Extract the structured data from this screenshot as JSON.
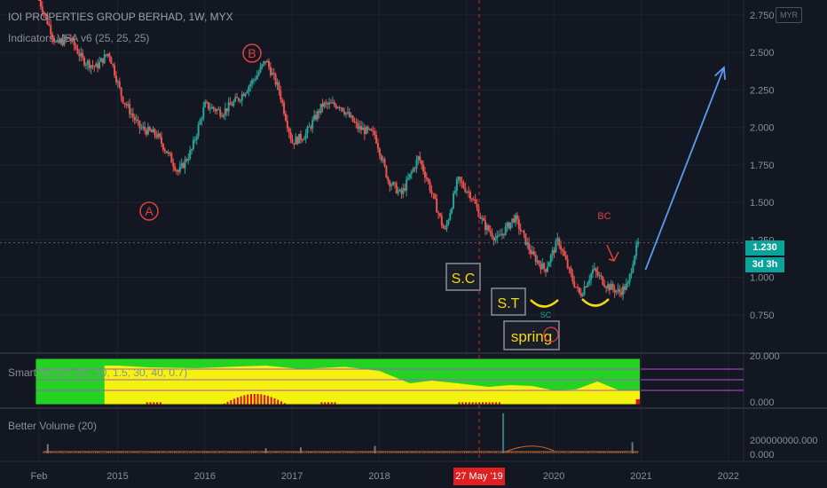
{
  "header": {
    "title": "IOI PROPERTIES GROUP BERHAD, 1W, MYX",
    "indicator": "Indicators VSA v6 (25, 25, 25)",
    "currency_badge": "MYR"
  },
  "panes": {
    "mcdx_label": "Smart MCDX (50, 50, 1.5, 30, 40, 0.7)",
    "volume_label": "Better Volume (20)"
  },
  "price_flags": {
    "last": "1.230",
    "countdown": "3d 3h"
  },
  "crosshair_date": "27 May '19",
  "annotations": {
    "wave_b": "B",
    "wave_a": "A",
    "sc": "S.C",
    "st": "S.T",
    "spring": "spring",
    "sc_small": "SC",
    "bc": "BC"
  },
  "colors": {
    "background": "#131722",
    "up_candle": "#26a69a",
    "down_candle": "#ef5350",
    "annotation_red": "#e0403c",
    "annotation_yellow": "#f5d90a",
    "forecast_arrow": "#5b9cf0",
    "mcdx_green": "#22d322",
    "mcdx_yellow": "#f3f30e",
    "mcdx_red": "#e01010",
    "badge_teal": "#0aa39a"
  },
  "chart_data": [
    {
      "type": "candlestick",
      "title": "IOI PROPERTIES GROUP BERHAD, 1W, MYX",
      "x_ticks": [
        "Feb",
        "2015",
        "2016",
        "2017",
        "2018",
        "2019",
        "2020",
        "2021",
        "2022"
      ],
      "y_ticks": [
        0.75,
        1.0,
        1.25,
        1.5,
        1.75,
        2.0,
        2.25,
        2.5,
        2.75
      ],
      "ylim": [
        0.5,
        2.85
      ],
      "last_price": 1.23,
      "close_path": [
        {
          "x": 2014.1,
          "y": 2.85
        },
        {
          "x": 2014.3,
          "y": 2.55
        },
        {
          "x": 2014.45,
          "y": 2.6
        },
        {
          "x": 2014.6,
          "y": 2.45
        },
        {
          "x": 2014.75,
          "y": 2.4
        },
        {
          "x": 2014.9,
          "y": 2.5
        },
        {
          "x": 2015.05,
          "y": 2.2
        },
        {
          "x": 2015.25,
          "y": 2.0
        },
        {
          "x": 2015.45,
          "y": 1.95
        },
        {
          "x": 2015.6,
          "y": 1.8
        },
        {
          "x": 2015.7,
          "y": 1.7
        },
        {
          "x": 2015.85,
          "y": 1.85
        },
        {
          "x": 2016.0,
          "y": 2.15
        },
        {
          "x": 2016.2,
          "y": 2.1
        },
        {
          "x": 2016.4,
          "y": 2.2
        },
        {
          "x": 2016.6,
          "y": 2.35
        },
        {
          "x": 2016.7,
          "y": 2.45
        },
        {
          "x": 2016.85,
          "y": 2.25
        },
        {
          "x": 2017.0,
          "y": 1.9
        },
        {
          "x": 2017.15,
          "y": 1.95
        },
        {
          "x": 2017.35,
          "y": 2.15
        },
        {
          "x": 2017.55,
          "y": 2.15
        },
        {
          "x": 2017.75,
          "y": 2.0
        },
        {
          "x": 2017.95,
          "y": 1.95
        },
        {
          "x": 2018.1,
          "y": 1.65
        },
        {
          "x": 2018.25,
          "y": 1.55
        },
        {
          "x": 2018.45,
          "y": 1.8
        },
        {
          "x": 2018.55,
          "y": 1.65
        },
        {
          "x": 2018.75,
          "y": 1.3
        },
        {
          "x": 2018.9,
          "y": 1.65
        },
        {
          "x": 2019.05,
          "y": 1.55
        },
        {
          "x": 2019.2,
          "y": 1.35
        },
        {
          "x": 2019.35,
          "y": 1.25
        },
        {
          "x": 2019.55,
          "y": 1.4
        },
        {
          "x": 2019.75,
          "y": 1.15
        },
        {
          "x": 2019.9,
          "y": 1.05
        },
        {
          "x": 2020.05,
          "y": 1.25
        },
        {
          "x": 2020.2,
          "y": 1.0
        },
        {
          "x": 2020.3,
          "y": 0.88
        },
        {
          "x": 2020.45,
          "y": 1.05
        },
        {
          "x": 2020.6,
          "y": 0.95
        },
        {
          "x": 2020.75,
          "y": 0.9
        },
        {
          "x": 2020.85,
          "y": 0.95
        },
        {
          "x": 2020.92,
          "y": 1.15
        },
        {
          "x": 2020.97,
          "y": 1.23
        }
      ],
      "forecast_arrow": {
        "from": {
          "x": 2021.05,
          "y": 1.05
        },
        "to": {
          "x": 2021.95,
          "y": 2.4
        }
      }
    },
    {
      "type": "area",
      "title": "Smart MCDX (50, 50, 1.5, 30, 40, 0.7)",
      "y_ticks": [
        0.0,
        20.0
      ],
      "y_tick_labels": [
        "0.000",
        "20.000"
      ],
      "ylim": [
        0,
        20
      ],
      "x_range": [
        2014.1,
        2020.97
      ],
      "green_level": [
        {
          "x": 2014.1,
          "y": 20
        },
        {
          "x": 2015.0,
          "y": 20
        },
        {
          "x": 2015.35,
          "y": 19
        },
        {
          "x": 2015.9,
          "y": 18.5
        },
        {
          "x": 2016.4,
          "y": 19.5
        },
        {
          "x": 2016.7,
          "y": 20
        },
        {
          "x": 2017.1,
          "y": 18
        },
        {
          "x": 2017.6,
          "y": 19.3
        },
        {
          "x": 2018.0,
          "y": 17
        },
        {
          "x": 2018.35,
          "y": 10
        },
        {
          "x": 2018.6,
          "y": 11.5
        },
        {
          "x": 2018.9,
          "y": 10
        },
        {
          "x": 2019.25,
          "y": 8
        },
        {
          "x": 2019.5,
          "y": 9
        },
        {
          "x": 2019.75,
          "y": 8.5
        },
        {
          "x": 2020.0,
          "y": 6
        },
        {
          "x": 2020.25,
          "y": 6.5
        },
        {
          "x": 2020.5,
          "y": 11
        },
        {
          "x": 2020.75,
          "y": 6
        },
        {
          "x": 2020.97,
          "y": 6
        }
      ],
      "red_level": [
        {
          "x": 2016.2,
          "y": 1
        },
        {
          "x": 2016.6,
          "y": 5.5
        },
        {
          "x": 2016.9,
          "y": 2
        },
        {
          "x": 2017.3,
          "y": 1
        },
        {
          "x": 2017.6,
          "y": 1
        },
        {
          "x": 2020.97,
          "y": 1.5
        }
      ]
    },
    {
      "type": "bar",
      "title": "Better Volume (20)",
      "y_ticks": [
        0,
        200000000
      ],
      "y_tick_labels": [
        "0.000",
        "200000000.000"
      ],
      "ylim": [
        0,
        200000000
      ],
      "spikes": [
        {
          "x": 2014.2,
          "y": 50000000
        },
        {
          "x": 2016.7,
          "y": 28000000
        },
        {
          "x": 2017.1,
          "y": 32000000
        },
        {
          "x": 2017.95,
          "y": 40000000
        },
        {
          "x": 2019.42,
          "y": 215000000
        },
        {
          "x": 2020.9,
          "y": 60000000
        }
      ]
    }
  ]
}
